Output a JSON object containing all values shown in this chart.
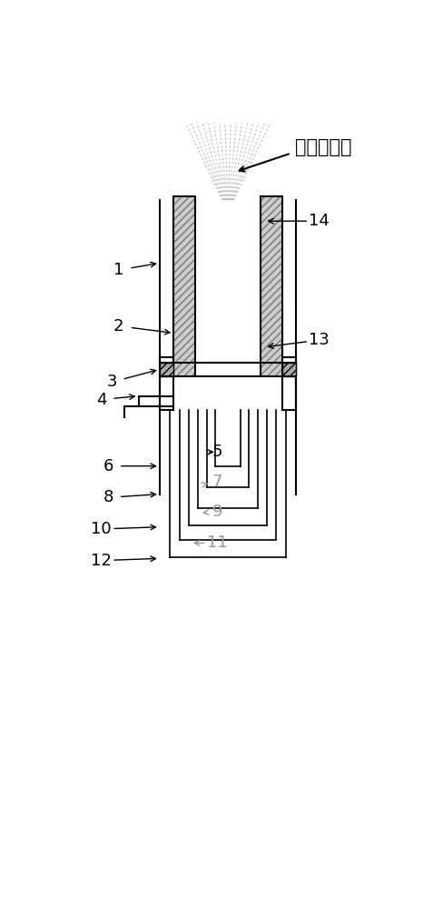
{
  "bg_color": "#ffffff",
  "lc": "#000000",
  "title": "激发源炬焰",
  "flame_color": "#bbbbbb",
  "hatch_fc": "#cccccc",
  "strip_fc": "#aaaaaa"
}
